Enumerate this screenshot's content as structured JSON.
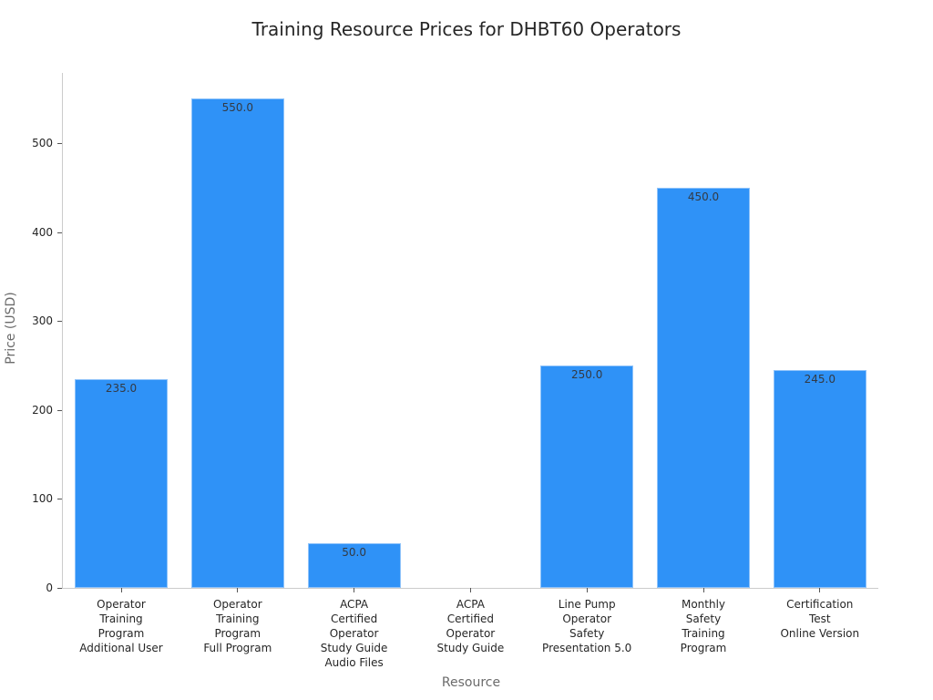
{
  "chart_data": {
    "type": "bar",
    "title": "Training Resource Prices for DHBT60 Operators",
    "xlabel": "Resource",
    "ylabel": "Price (USD)",
    "ylim": [
      0,
      579
    ],
    "yticks": [
      0,
      100,
      200,
      300,
      400,
      500
    ],
    "grid": false,
    "legend": null,
    "bar_color": "#2f92f7",
    "categories": [
      "Operator Training Program Additional User",
      "Operator Training Program Full Program",
      "ACPA Certified Operator Study Guide Audio Files",
      "ACPA Certified Operator Study Guide",
      "Line Pump Operator Safety Presentation 5.0",
      "Monthly Safety Training Program",
      "Certification Test Online Version"
    ],
    "category_lines": [
      [
        "Operator",
        "Training",
        "Program",
        "Additional User"
      ],
      [
        "Operator",
        "Training",
        "Program",
        "Full Program"
      ],
      [
        "ACPA",
        "Certified",
        "Operator",
        "Study Guide",
        "Audio Files"
      ],
      [
        "ACPA",
        "Certified",
        "Operator",
        "Study Guide"
      ],
      [
        "Line Pump",
        "Operator",
        "Safety",
        "Presentation 5.0"
      ],
      [
        "Monthly",
        "Safety",
        "Training",
        "Program"
      ],
      [
        "Certification",
        "Test",
        "Online Version"
      ]
    ],
    "values": [
      235.0,
      550.0,
      50.0,
      null,
      250.0,
      450.0,
      245.0
    ],
    "value_labels": [
      "235.0",
      "550.0",
      "50.0",
      "",
      "250.0",
      "450.0",
      "245.0"
    ]
  }
}
